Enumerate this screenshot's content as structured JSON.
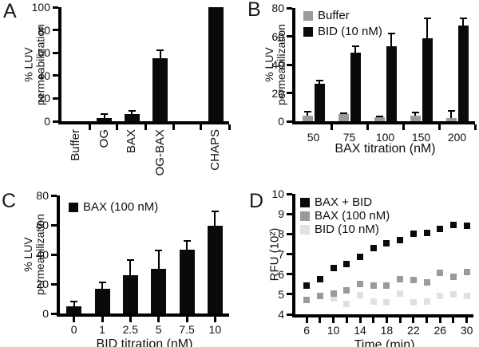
{
  "figure": {
    "description": "Four-panel LUV permeabilization figure"
  },
  "chart_data": [
    {
      "id": "A",
      "letter": "A",
      "type": "bar",
      "categories": [
        "Buffer",
        "OG",
        "BAX",
        "OG-BAX",
        "CHAPS"
      ],
      "values": [
        0,
        3,
        6,
        55.5,
        100
      ],
      "errors": [
        0,
        4,
        3.5,
        7.5,
        0
      ],
      "bar_color": "#0a0a0a",
      "ylabel": "% LUV permeabilization",
      "ylabel_lines": [
        "% LUV",
        "permeabilization"
      ],
      "xlabel": "",
      "ylim": [
        0,
        100
      ],
      "yticks": [
        0,
        20,
        40,
        60,
        80,
        100
      ],
      "grid": false,
      "legend_position": "none"
    },
    {
      "id": "B",
      "letter": "B",
      "type": "bar",
      "categories": [
        "50",
        "75",
        "100",
        "150",
        "200"
      ],
      "series": [
        {
          "name": "Buffer",
          "color": "#9a9a9a",
          "values": [
            4,
            5,
            3,
            4,
            2.5
          ],
          "errors": [
            3.5,
            1,
            0.8,
            2.5,
            5.5
          ]
        },
        {
          "name": "BID (10 nM)",
          "color": "#0a0a0a",
          "values": [
            26.5,
            48.5,
            53,
            58.5,
            67.5
          ],
          "errors": [
            3,
            5,
            9.5,
            14.5,
            5.5
          ]
        }
      ],
      "ylabel": "% LUV permeabilization",
      "ylabel_lines": [
        "% LUV",
        "permeabilization"
      ],
      "xlabel": "BAX titration (nM)",
      "ylim": [
        0,
        80
      ],
      "yticks": [
        0,
        20,
        40,
        60,
        80
      ],
      "grid": false,
      "legend_position": "top-left"
    },
    {
      "id": "C",
      "letter": "C",
      "type": "bar",
      "categories": [
        "0",
        "1",
        "2.5",
        "5",
        "7.5",
        "10"
      ],
      "values": [
        5,
        17,
        26,
        30.5,
        43.5,
        59.5
      ],
      "errors": [
        3.5,
        4.5,
        11,
        13,
        6.5,
        10
      ],
      "bar_color": "#0a0a0a",
      "legend": [
        {
          "label": "BAX (100 nM)",
          "color": "#0a0a0a"
        }
      ],
      "ylabel": "% LUV permeabilization",
      "ylabel_lines": [
        "% LUV",
        "permeabilization"
      ],
      "xlabel": "BID titration (nM)",
      "ylim": [
        0,
        80
      ],
      "yticks": [
        0,
        20,
        40,
        60,
        80
      ],
      "grid": false,
      "legend_position": "top-left"
    },
    {
      "id": "D",
      "letter": "D",
      "type": "scatter",
      "x": [
        6,
        8,
        10,
        12,
        14,
        16,
        18,
        20,
        22,
        24,
        26,
        28,
        30
      ],
      "series": [
        {
          "name": "BAX + BID",
          "color": "#0a0a0a",
          "values": [
            5.45,
            5.75,
            6.3,
            6.5,
            6.85,
            7.3,
            7.55,
            7.7,
            8.0,
            8.05,
            8.25,
            8.45,
            8.4
          ]
        },
        {
          "name": "BAX (100 nM)",
          "color": "#9a9a9a",
          "values": [
            4.7,
            4.9,
            5.05,
            5.2,
            5.5,
            5.45,
            5.45,
            5.75,
            5.7,
            5.6,
            6.05,
            5.85,
            6.1
          ]
        },
        {
          "name": "BID (10 nM)",
          "color": "#e0e0e0",
          "values": [
            4.7,
            4.9,
            4.8,
            4.5,
            4.95,
            4.65,
            4.6,
            5.05,
            4.6,
            4.65,
            4.9,
            5.0,
            4.9
          ]
        }
      ],
      "ylabel": "RFU (10²)",
      "xlabel": "Time (min)",
      "ylim": [
        4,
        10
      ],
      "yticks": [
        4,
        5,
        6,
        7,
        8,
        9,
        10
      ],
      "xlim": [
        4.3,
        31
      ],
      "xticks": [
        6,
        8,
        10,
        12,
        14,
        16,
        18,
        20,
        22,
        24,
        26,
        28,
        30
      ],
      "xtick_labels": [
        6,
        10,
        14,
        18,
        22,
        26,
        30
      ],
      "grid": false,
      "legend_position": "top-left"
    }
  ]
}
